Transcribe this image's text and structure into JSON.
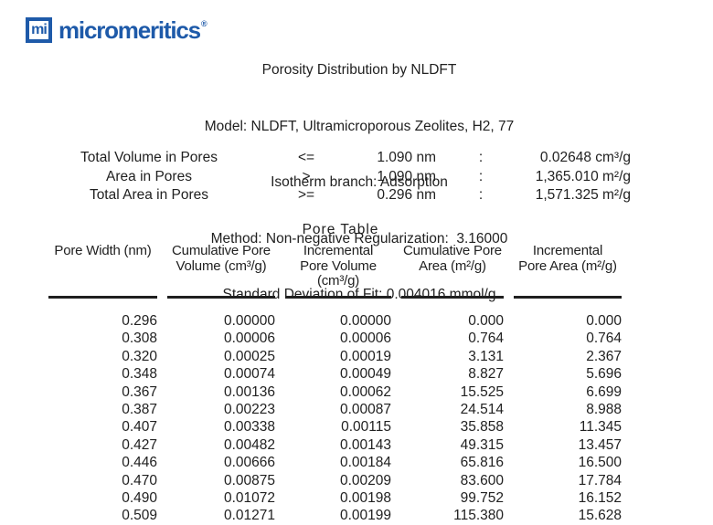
{
  "logo": {
    "mark": "mi",
    "wordmark": "micromeritics",
    "registered": "®",
    "brand_color": "#1e5aa9"
  },
  "title_block": {
    "lines": [
      "Porosity Distribution by NLDFT",
      "Model: NLDFT, Ultramicroporous Zeolites, H2, 77",
      "Isotherm branch: Adsorption",
      "Method: Non-negative Regularization:  3.16000",
      "Standard Deviation of Fit: 0.004016 mmol/g"
    ]
  },
  "summary": {
    "rows": [
      {
        "label": "Total Volume in Pores",
        "operator": "<=",
        "size": "1.090 nm",
        "colon": ":",
        "value": "0.02648 cm³/g"
      },
      {
        "label": "Area in Pores",
        "operator": ">",
        "size": "1.090 nm",
        "colon": ":",
        "value": "1,365.010 m²/g"
      },
      {
        "label": "Total Area in Pores",
        "operator": ">=",
        "size": "0.296 nm",
        "colon": ":",
        "value": "1,571.325 m²/g"
      }
    ]
  },
  "pore_table": {
    "title": "Pore Table",
    "columns": [
      "Pore Width (nm)",
      "Cumulative Pore\nVolume (cm³/g)",
      "Incremental\nPore Volume\n(cm³/g)",
      "Cumulative Pore\nArea (m²/g)",
      "Incremental\nPore Area (m²/g)"
    ],
    "rows": [
      [
        "0.296",
        "0.00000",
        "0.00000",
        "0.000",
        "0.000"
      ],
      [
        "0.308",
        "0.00006",
        "0.00006",
        "0.764",
        "0.764"
      ],
      [
        "0.320",
        "0.00025",
        "0.00019",
        "3.131",
        "2.367"
      ],
      [
        "0.348",
        "0.00074",
        "0.00049",
        "8.827",
        "5.696"
      ],
      [
        "0.367",
        "0.00136",
        "0.00062",
        "15.525",
        "6.699"
      ],
      [
        "0.387",
        "0.00223",
        "0.00087",
        "24.514",
        "8.988"
      ],
      [
        "0.407",
        "0.00338",
        "0.00115",
        "35.858",
        "11.345"
      ],
      [
        "0.427",
        "0.00482",
        "0.00143",
        "49.315",
        "13.457"
      ],
      [
        "0.446",
        "0.00666",
        "0.00184",
        "65.816",
        "16.500"
      ],
      [
        "0.470",
        "0.00875",
        "0.00209",
        "83.600",
        "17.784"
      ],
      [
        "0.490",
        "0.01072",
        "0.00198",
        "99.752",
        "16.152"
      ],
      [
        "0.509",
        "0.01271",
        "0.00199",
        "115.380",
        "15.628"
      ]
    ]
  }
}
